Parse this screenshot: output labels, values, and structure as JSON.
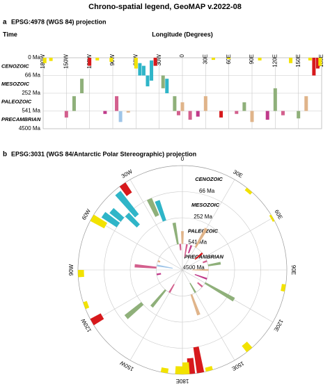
{
  "title": "Chrono-spatial legend, GeoMAP v.2022-08",
  "chart_data": [
    {
      "type": "strip",
      "panel": "a",
      "title": "EPSG:4978 (WGS 84) projection",
      "ylabel": "Time",
      "xlabel": "Longitude (Degrees)",
      "xlim": [
        -180,
        180
      ],
      "xticks": [
        {
          "value": -180,
          "label": "180W"
        },
        {
          "value": -150,
          "label": "150W"
        },
        {
          "value": -120,
          "label": "120W"
        },
        {
          "value": -90,
          "label": "90W"
        },
        {
          "value": -60,
          "label": "60W"
        },
        {
          "value": -30,
          "label": "30W"
        },
        0,
        {
          "value": 30,
          "label": "30E"
        },
        {
          "value": 60,
          "label": "60E"
        },
        {
          "value": 90,
          "label": "90E"
        },
        {
          "value": 120,
          "label": "120E"
        },
        {
          "value": 150,
          "label": "150E"
        },
        {
          "value": 180,
          "label": "180E"
        }
      ],
      "ylim": [
        0,
        4500
      ],
      "yticks": [
        {
          "value": 0,
          "label": "0 Ma"
        },
        {
          "value": 66,
          "label": "66 Ma"
        },
        {
          "value": 252,
          "label": "252 Ma"
        },
        {
          "value": 541,
          "label": "541 Ma"
        },
        {
          "value": 4500,
          "label": "4500 Ma"
        }
      ],
      "eras": [
        "CENOZOIC",
        "MESOZOIC",
        "PALEOZOIC",
        "PRECAMBRIAN"
      ],
      "grid": true,
      "features": {
        "lon": [
          -178,
          -170,
          -120,
          -110,
          -92,
          -60,
          -55,
          -50,
          -45,
          -40,
          -35,
          -25,
          -20,
          -10,
          -5,
          0,
          10,
          20,
          30,
          40,
          50,
          60,
          70,
          80,
          90,
          100,
          110,
          120,
          130,
          140,
          150,
          160,
          165,
          170,
          175,
          178,
          -150,
          -140,
          -100,
          -80,
          -70,
          -130,
          -85
        ],
        "from": [
          0,
          0,
          0,
          0,
          0,
          0,
          20,
          30,
          66,
          10,
          0,
          66,
          100,
          300,
          541,
          400,
          541,
          541,
          300,
          0,
          541,
          0,
          541,
          400,
          541,
          0,
          541,
          200,
          541,
          0,
          541,
          300,
          0,
          0,
          0,
          0,
          541,
          300,
          541,
          600,
          541,
          100,
          300
        ],
        "to": [
          20,
          12,
          30,
          10,
          15,
          40,
          66,
          66,
          180,
          120,
          30,
          200,
          252,
          541,
          1500,
          541,
          2500,
          1800,
          541,
          8,
          2000,
          5,
          1200,
          541,
          3000,
          10,
          2500,
          541,
          1500,
          20,
          2200,
          541,
          10,
          66,
          40,
          30,
          2000,
          541,
          1200,
          3000,
          900,
          252,
          541
        ],
        "color": [
          "#f2e200",
          "#f2e200",
          "#d7191c",
          "#f2e200",
          "#f2e200",
          "#f2e200",
          "#2fb5c8",
          "#2fb5c8",
          "#2fb5c8",
          "#2fb5c8",
          "#d7191c",
          "#8fb07a",
          "#2fb5c8",
          "#8fb07a",
          "#d35f8d",
          "#e0b48a",
          "#d35f8d",
          "#c03a8a",
          "#e0b48a",
          "#f2e200",
          "#d7191c",
          "#f2e200",
          "#d35f8d",
          "#8fb07a",
          "#e0b48a",
          "#f2e200",
          "#c03a8a",
          "#8fb07a",
          "#d35f8d",
          "#f2e200",
          "#8fb07a",
          "#e0b48a",
          "#f2e200",
          "#d7191c",
          "#d7191c",
          "#f2e200",
          "#d35f8d",
          "#8fb07a",
          "#c03a8a",
          "#9fc5e8",
          "#e0b48a",
          "#8fb07a",
          "#d35f8d"
        ]
      }
    },
    {
      "type": "polar",
      "panel": "b",
      "title": "EPSG:3031 (WGS 84/Antarctic Polar Stereographic) projection",
      "xticks": [
        0,
        {
          "value": 30,
          "label": "30E"
        },
        {
          "value": 60,
          "label": "60E"
        },
        {
          "value": 90,
          "label": "90E"
        },
        {
          "value": 120,
          "label": "120E"
        },
        {
          "value": 150,
          "label": "150E"
        },
        {
          "value": 180,
          "label": "180E"
        },
        {
          "value": -150,
          "label": "150W"
        },
        {
          "value": -120,
          "label": "120W"
        },
        {
          "value": -90,
          "label": "90W"
        },
        {
          "value": -60,
          "label": "60W"
        },
        {
          "value": -30,
          "label": "30W"
        }
      ],
      "ylim": [
        0,
        4500
      ],
      "yticks": [
        {
          "value": 66,
          "label": "66 Ma"
        },
        {
          "value": 252,
          "label": "252 Ma"
        },
        {
          "value": 541,
          "label": "541 Ma"
        },
        {
          "value": 4500,
          "label": "4500 Ma"
        }
      ],
      "eras": [
        "CENOZOIC",
        "MESOZOIC",
        "PALEOZOIC",
        "PRECAMBRIAN"
      ],
      "grid": true
    }
  ]
}
